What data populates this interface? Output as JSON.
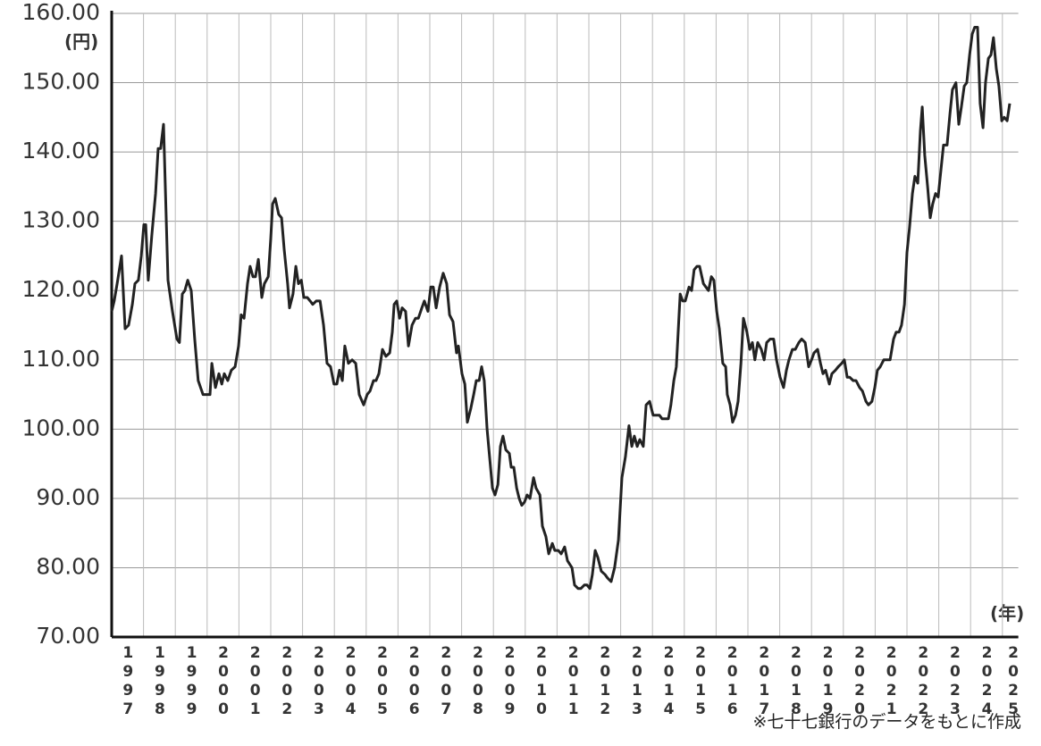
{
  "chart_data": {
    "type": "line",
    "y_unit": "(円)",
    "x_unit": "(年)",
    "source": "※七十七銀行のデータをもとに作成",
    "color": "#222222",
    "grid": true,
    "xlim": [
      1997,
      2025.5
    ],
    "xticks": [
      1997,
      1998,
      1999,
      2000,
      2001,
      2002,
      2003,
      2004,
      2005,
      2006,
      2007,
      2008,
      2009,
      2010,
      2011,
      2012,
      2013,
      2014,
      2015,
      2016,
      2017,
      2018,
      2019,
      2020,
      2021,
      2022,
      2023,
      2024,
      2025
    ],
    "ylim": [
      70,
      160
    ],
    "yticks": [
      {
        "value": 70,
        "label": "70.00"
      },
      {
        "value": 80,
        "label": "80.00"
      },
      {
        "value": 90,
        "label": "90.00"
      },
      {
        "value": 100,
        "label": "100.00"
      },
      {
        "value": 110,
        "label": "110.00"
      },
      {
        "value": 120,
        "label": "120.00"
      },
      {
        "value": 130,
        "label": "130.00"
      },
      {
        "value": 140,
        "label": "140.00"
      },
      {
        "value": 150,
        "label": "150.00"
      },
      {
        "value": 160,
        "label": "160.00"
      }
    ],
    "x": [
      1997.0,
      1997.08,
      1997.17,
      1997.31,
      1997.42,
      1997.53,
      1997.65,
      1997.73,
      1997.84,
      1997.93,
      1998.01,
      1998.07,
      1998.15,
      1998.26,
      1998.38,
      1998.46,
      1998.54,
      1998.63,
      1998.77,
      1998.91,
      1999.05,
      1999.13,
      1999.22,
      1999.3,
      1999.39,
      1999.5,
      1999.61,
      1999.72,
      1999.87,
      2000.01,
      2000.09,
      2000.15,
      2000.26,
      2000.37,
      2000.46,
      2000.54,
      2000.65,
      2000.76,
      2000.88,
      2000.99,
      2001.07,
      2001.16,
      2001.27,
      2001.35,
      2001.44,
      2001.52,
      2001.61,
      2001.72,
      2001.8,
      2001.92,
      2002.0,
      2002.06,
      2002.14,
      2002.25,
      2002.34,
      2002.42,
      2002.53,
      2002.59,
      2002.7,
      2002.79,
      2002.87,
      2002.96,
      2003.04,
      2003.15,
      2003.24,
      2003.32,
      2003.43,
      2003.55,
      2003.66,
      2003.77,
      2003.88,
      2003.99,
      2004.08,
      2004.16,
      2004.25,
      2004.33,
      2004.44,
      2004.56,
      2004.67,
      2004.78,
      2004.92,
      2005.03,
      2005.12,
      2005.23,
      2005.31,
      2005.4,
      2005.51,
      2005.62,
      2005.74,
      2005.82,
      2005.88,
      2005.96,
      2006.05,
      2006.13,
      2006.24,
      2006.33,
      2006.44,
      2006.55,
      2006.64,
      2006.75,
      2006.83,
      2006.94,
      2007.03,
      2007.11,
      2007.2,
      2007.31,
      2007.42,
      2007.53,
      2007.62,
      2007.73,
      2007.84,
      2007.9,
      2008.01,
      2008.1,
      2008.18,
      2008.29,
      2008.38,
      2008.46,
      2008.55,
      2008.63,
      2008.71,
      2008.8,
      2008.88,
      2008.97,
      2009.05,
      2009.14,
      2009.22,
      2009.3,
      2009.39,
      2009.5,
      2009.56,
      2009.64,
      2009.73,
      2009.81,
      2009.89,
      2009.98,
      2010.06,
      2010.15,
      2010.26,
      2010.34,
      2010.46,
      2010.54,
      2010.65,
      2010.74,
      2010.85,
      2010.93,
      2011.04,
      2011.13,
      2011.24,
      2011.33,
      2011.47,
      2011.55,
      2011.66,
      2011.75,
      2011.86,
      2011.94,
      2012.03,
      2012.11,
      2012.2,
      2012.28,
      2012.39,
      2012.51,
      2012.59,
      2012.7,
      2012.81,
      2012.93,
      2013.04,
      2013.15,
      2013.26,
      2013.35,
      2013.43,
      2013.52,
      2013.6,
      2013.71,
      2013.8,
      2013.91,
      2014.02,
      2014.13,
      2014.22,
      2014.3,
      2014.39,
      2014.5,
      2014.58,
      2014.67,
      2014.75,
      2014.87,
      2014.95,
      2015.03,
      2015.15,
      2015.23,
      2015.31,
      2015.4,
      2015.48,
      2015.6,
      2015.68,
      2015.76,
      2015.85,
      2015.93,
      2016.02,
      2016.1,
      2016.21,
      2016.3,
      2016.35,
      2016.44,
      2016.52,
      2016.61,
      2016.69,
      2016.78,
      2016.86,
      2016.97,
      2017.06,
      2017.14,
      2017.22,
      2017.31,
      2017.42,
      2017.51,
      2017.59,
      2017.7,
      2017.81,
      2017.9,
      2018.01,
      2018.12,
      2018.21,
      2018.29,
      2018.4,
      2018.49,
      2018.6,
      2018.69,
      2018.8,
      2018.91,
      2019.0,
      2019.08,
      2019.19,
      2019.28,
      2019.36,
      2019.44,
      2019.56,
      2019.64,
      2019.75,
      2019.84,
      2019.95,
      2020.03,
      2020.12,
      2020.2,
      2020.31,
      2020.4,
      2020.51,
      2020.6,
      2020.71,
      2020.79,
      2020.9,
      2020.99,
      2021.07,
      2021.16,
      2021.27,
      2021.35,
      2021.47,
      2021.58,
      2021.66,
      2021.75,
      2021.83,
      2021.92,
      2022.0,
      2022.08,
      2022.17,
      2022.25,
      2022.34,
      2022.42,
      2022.48,
      2022.56,
      2022.65,
      2022.73,
      2022.81,
      2022.9,
      2022.98,
      2023.07,
      2023.15,
      2023.26,
      2023.35,
      2023.43,
      2023.54,
      2023.63,
      2023.71,
      2023.8,
      2023.88,
      2023.97,
      2024.05,
      2024.13,
      2024.22,
      2024.3,
      2024.39,
      2024.47,
      2024.56,
      2024.64,
      2024.72,
      2024.81,
      2024.89,
      2024.98,
      2025.06,
      2025.15,
      2025.23
    ],
    "values": [
      117,
      118.5,
      121,
      125,
      114.5,
      115,
      118,
      121,
      121.5,
      125,
      129.5,
      129.5,
      121.5,
      128,
      134,
      140.5,
      140.5,
      144,
      121.5,
      117,
      113,
      112.5,
      119.5,
      120,
      121.5,
      120,
      113,
      107,
      105,
      105,
      105,
      109.5,
      106,
      108,
      106.5,
      108,
      107,
      108.5,
      109,
      112,
      116.5,
      116,
      121,
      123.5,
      122,
      122,
      124.5,
      119,
      121,
      122,
      127.5,
      132.5,
      133.3,
      131,
      130.5,
      126,
      121,
      117.5,
      119.5,
      123.5,
      121,
      121.5,
      119,
      119,
      118.5,
      118,
      118.5,
      118.5,
      115,
      109.5,
      109,
      106.5,
      106.5,
      108.5,
      107,
      112,
      109.5,
      110,
      109.5,
      105,
      103.5,
      105,
      105.5,
      107,
      107,
      108,
      111.5,
      110.5,
      111,
      114,
      118,
      118.5,
      116,
      117.5,
      117,
      112,
      115,
      116,
      116,
      117.5,
      118.5,
      117,
      120.5,
      120.5,
      117.5,
      120.5,
      122.5,
      121,
      116.5,
      115.5,
      111,
      112,
      108,
      106.5,
      101,
      103,
      105,
      107,
      107,
      109,
      107,
      100,
      96,
      91.5,
      90.5,
      92,
      97.5,
      99,
      97,
      96.5,
      94.5,
      94.5,
      91.5,
      90,
      89,
      89.5,
      90.5,
      90,
      93,
      91.5,
      90.5,
      86,
      84.5,
      82,
      83.5,
      82.5,
      82.5,
      82,
      83,
      81,
      80,
      77.5,
      77,
      77,
      77.5,
      77.5,
      77,
      79,
      82.5,
      81.5,
      79.5,
      79,
      78.5,
      78,
      80,
      84,
      93,
      96,
      100.5,
      97.5,
      99,
      97.5,
      98.5,
      97.5,
      103.5,
      104,
      102,
      102,
      102,
      101.5,
      101.5,
      101.5,
      103.5,
      107,
      109,
      119.5,
      118.5,
      118.5,
      120.5,
      120,
      123,
      123.5,
      123.5,
      121,
      120.5,
      120,
      122,
      121.5,
      117,
      114.5,
      109.5,
      109,
      105,
      103.5,
      101,
      102,
      104,
      109.5,
      116,
      114,
      111.5,
      112.5,
      110,
      112.5,
      111.5,
      110,
      112.5,
      113,
      113,
      110,
      107.5,
      106,
      108.5,
      110,
      111.5,
      111.5,
      112.5,
      113,
      112.5,
      109,
      110,
      111,
      111.5,
      109.5,
      108,
      108.5,
      106.5,
      108,
      108.5,
      109,
      109.5,
      110,
      107.5,
      107.5,
      107,
      107,
      106,
      105.5,
      104,
      103.5,
      104,
      106,
      108.5,
      109,
      110,
      110,
      110,
      113,
      114,
      114,
      115,
      118,
      125.5,
      129,
      134,
      136.5,
      135.5,
      143,
      146.5,
      139.5,
      135,
      130.5,
      132.5,
      134,
      133.5,
      137.5,
      141,
      141,
      145.5,
      149,
      150,
      144,
      146.5,
      149.5,
      150,
      154,
      157,
      158,
      158,
      147,
      143.5,
      150,
      153.5,
      154,
      156.5,
      152,
      149.5,
      144.5,
      145,
      144.5,
      147
    ]
  }
}
